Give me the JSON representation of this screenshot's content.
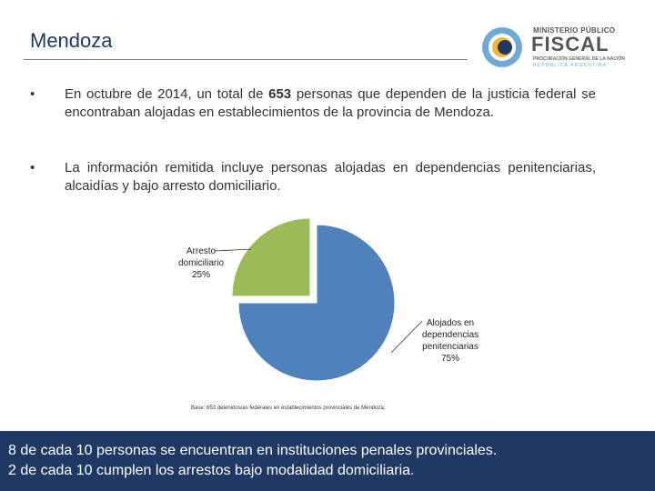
{
  "header": {
    "title": "Mendoza"
  },
  "logo": {
    "line1": "MINISTERIO PÚBLICO",
    "line2": "FISCAL",
    "line3": "PROCURACIÓN GENERAL DE LA NACIÓN",
    "line4": "REPÚBLICA ARGENTINA"
  },
  "bullets": [
    {
      "pre": "En octubre de 2014, un total de ",
      "bold": "653",
      "post": " personas que dependen de la justicia federal se encontraban alojadas en establecimientos de la provincia de Mendoza."
    },
    {
      "text": "La información remitida incluye personas alojadas en dependencias penitenciarias, alcaidías y bajo arresto domiciliario."
    }
  ],
  "bullet_glyph": "•",
  "chart_data": {
    "type": "pie",
    "slices": [
      {
        "label": "Arresto domiciliario",
        "value": 25,
        "display": "25%",
        "color": "#9bbb59",
        "exploded": true
      },
      {
        "label": "Alojados en dependencias penitenciarias",
        "value": 75,
        "display": "75%",
        "color": "#4f81bd",
        "exploded": false
      }
    ],
    "labels": {
      "arresto_line1": "Arresto",
      "arresto_line2": "domiciliario",
      "arresto_pct": "25%",
      "alojados_line1": "Alojados en",
      "alojados_line2": "dependencias",
      "alojados_line3": "penitenciarias",
      "alojados_pct": "75%"
    },
    "note": "Base: 653 detenidos/as federales en establecimientos provinciales de Mendoza."
  },
  "banner": {
    "line1": "8 de cada 10 personas se encuentran en instituciones penales provinciales.",
    "line2": "2 de cada 10 cumplen los arrestos bajo modalidad domiciliaria."
  }
}
